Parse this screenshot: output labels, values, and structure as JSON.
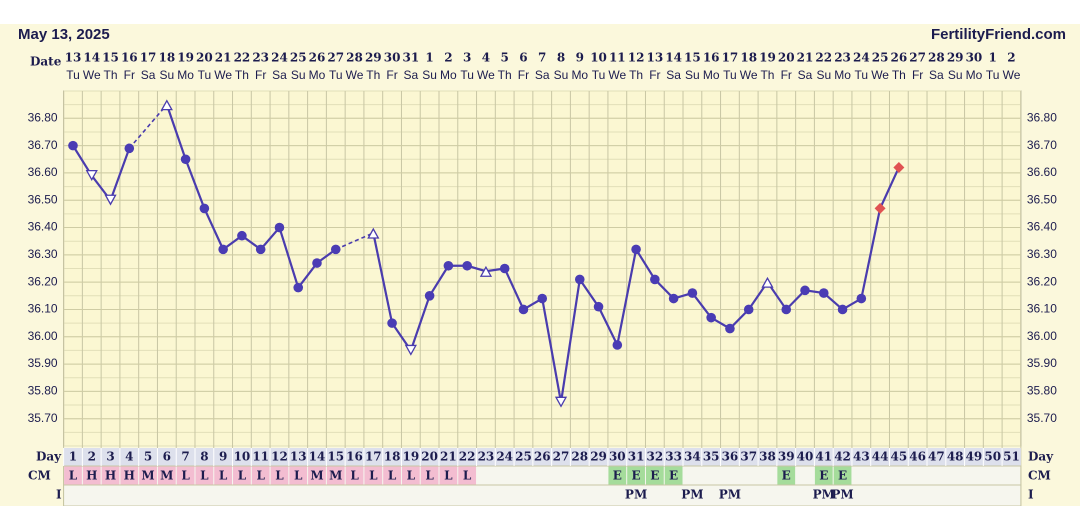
{
  "header": {
    "date": "May 13, 2025",
    "site": "FertilityFriend.com"
  },
  "chart_data": {
    "type": "line",
    "row_labels": {
      "date": "Date",
      "day": "Day",
      "cm": "CM",
      "i": "I"
    },
    "dates": [
      13,
      14,
      15,
      16,
      17,
      18,
      19,
      20,
      21,
      22,
      23,
      24,
      25,
      26,
      27,
      28,
      29,
      30,
      31,
      1,
      2,
      3,
      4,
      5,
      6,
      7,
      8,
      9,
      10,
      11,
      12,
      13,
      14,
      15,
      16,
      17,
      18,
      19,
      20,
      21,
      22,
      23,
      24,
      25,
      26,
      27,
      28,
      29,
      30,
      1,
      2
    ],
    "weekdays": [
      "Tu",
      "We",
      "Th",
      "Fr",
      "Sa",
      "Su",
      "Mo",
      "Tu",
      "We",
      "Th",
      "Fr",
      "Sa",
      "Su",
      "Mo",
      "Tu",
      "We",
      "Th",
      "Fr",
      "Sa",
      "Su",
      "Mo",
      "Tu",
      "We",
      "Th",
      "Fr",
      "Sa",
      "Su",
      "Mo",
      "Tu",
      "We",
      "Th",
      "Fr",
      "Sa",
      "Su",
      "Mo",
      "Tu",
      "We",
      "Th",
      "Fr",
      "Sa",
      "Su",
      "Mo",
      "Tu",
      "We",
      "Th",
      "Fr",
      "Sa",
      "Su",
      "Mo",
      "Tu",
      "We"
    ],
    "days": [
      1,
      2,
      3,
      4,
      5,
      6,
      7,
      8,
      9,
      10,
      11,
      12,
      13,
      14,
      15,
      16,
      17,
      18,
      19,
      20,
      21,
      22,
      23,
      24,
      25,
      26,
      27,
      28,
      29,
      30,
      31,
      32,
      33,
      34,
      35,
      36,
      37,
      38,
      39,
      40,
      41,
      42,
      43,
      44,
      45,
      46,
      47,
      48,
      49,
      50,
      51
    ],
    "values": [
      36.7,
      36.59,
      36.5,
      36.69,
      null,
      36.85,
      36.65,
      36.47,
      36.32,
      36.37,
      36.32,
      36.4,
      36.18,
      36.27,
      36.32,
      null,
      36.38,
      36.05,
      35.95,
      36.15,
      36.26,
      36.26,
      36.24,
      36.25,
      36.1,
      36.14,
      35.76,
      36.21,
      36.11,
      35.97,
      36.32,
      36.21,
      36.14,
      36.16,
      36.07,
      36.03,
      36.1,
      36.2,
      36.1,
      36.17,
      36.16,
      36.1,
      36.14,
      36.47,
      36.62,
      null,
      null,
      null,
      null,
      null,
      null
    ],
    "markers": [
      "dot",
      "tri-down",
      "tri-down",
      "dot",
      null,
      "tri-up",
      "dot",
      "dot",
      "dot",
      "dot",
      "dot",
      "dot",
      "dot",
      "dot",
      "dot",
      null,
      "tri-up",
      "dot",
      "tri-down",
      "dot",
      "dot",
      "dot",
      "tri-up",
      "dot",
      "dot",
      "dot",
      "tri-down",
      "dot",
      "dot",
      "dot",
      "dot",
      "dot",
      "dot",
      "dot",
      "dot",
      "dot",
      "dot",
      "tri-up",
      "dot",
      "dot",
      "dot",
      "dot",
      "dot",
      "diamond",
      "diamond",
      null,
      null,
      null,
      null,
      null,
      null
    ],
    "color": "#4a3cae",
    "marker_colors": {
      "dot": "#4a3cb4",
      "open": "#ffffff",
      "diamond": "#e05252"
    },
    "bridge_gaps": true,
    "ylim": [
      35.6,
      36.9
    ],
    "yticks": [
      {
        "value": 35.7,
        "label": "35.70"
      },
      {
        "value": 35.8,
        "label": "35.80"
      },
      {
        "value": 35.9,
        "label": "35.90"
      },
      {
        "value": 36.0,
        "label": "36.00"
      },
      {
        "value": 36.1,
        "label": "36.10"
      },
      {
        "value": 36.2,
        "label": "36.20"
      },
      {
        "value": 36.3,
        "label": "36.30"
      },
      {
        "value": 36.4,
        "label": "36.40"
      },
      {
        "value": 36.5,
        "label": "36.50"
      },
      {
        "value": 36.6,
        "label": "36.60"
      },
      {
        "value": 36.7,
        "label": "36.70"
      },
      {
        "value": 36.8,
        "label": "36.80"
      }
    ],
    "grid": true,
    "cm": [
      "L",
      "H",
      "H",
      "H",
      "M",
      "M",
      "L",
      "L",
      "L",
      "L",
      "L",
      "L",
      "L",
      "M",
      "M",
      "L",
      "L",
      "L",
      "L",
      "L",
      "L",
      "L",
      null,
      null,
      null,
      null,
      null,
      null,
      null,
      "E",
      "E",
      "E",
      "E",
      null,
      null,
      null,
      null,
      null,
      "E",
      null,
      "E",
      "E",
      null,
      null,
      null,
      null,
      null,
      null,
      null,
      null,
      null
    ],
    "intercourse": [
      null,
      null,
      null,
      null,
      null,
      null,
      null,
      null,
      null,
      null,
      null,
      null,
      null,
      null,
      null,
      null,
      null,
      null,
      null,
      null,
      null,
      null,
      null,
      null,
      null,
      null,
      null,
      null,
      null,
      null,
      "PM",
      null,
      null,
      "PM",
      null,
      "PM",
      null,
      null,
      null,
      null,
      "PM",
      "PM",
      null,
      null,
      null,
      null,
      null,
      null,
      null,
      null,
      null
    ],
    "cm_colors": {
      "pink": "#f3bdd1",
      "green": "#a5dc9b"
    }
  }
}
